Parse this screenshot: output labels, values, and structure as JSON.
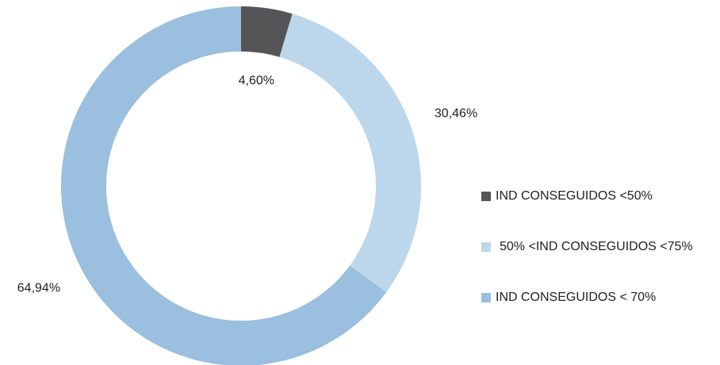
{
  "chart_data": {
    "type": "donut",
    "categories": [
      "IND CONSEGUIDOS <50%",
      "50% <IND CONSEGUIDOS <75%",
      "IND CONSEGUIDOS < 70%"
    ],
    "values": [
      4.6,
      30.46,
      64.94
    ],
    "value_labels": [
      "4,60%",
      "30,46%",
      "64,94%"
    ],
    "colors": [
      "#555558",
      "#bcd7ec",
      "#9abfdf"
    ],
    "legend": "right"
  }
}
